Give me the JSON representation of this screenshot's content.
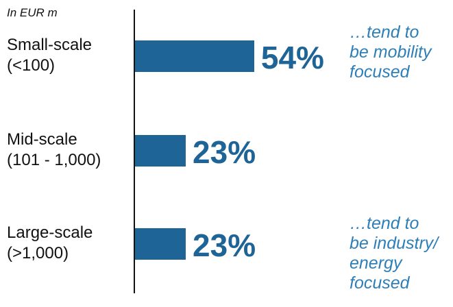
{
  "chart_data": {
    "type": "bar",
    "orientation": "horizontal",
    "unit_label": "In EUR m",
    "categories": [
      [
        "Small-scale",
        "(<100)"
      ],
      [
        "Mid-scale",
        "(101 - 1,000)"
      ],
      [
        "Large-scale",
        "(>1,000)"
      ]
    ],
    "values": [
      54,
      23,
      23
    ],
    "value_labels": [
      "54%",
      "23%",
      "23%"
    ],
    "xlim": [
      0,
      100
    ],
    "bar_color": "#1f6496",
    "annotations": [
      {
        "category_index": 0,
        "lines": [
          "…tend to",
          "be mobility",
          "focused"
        ]
      },
      {
        "category_index": 2,
        "lines": [
          "…tend to",
          "be industry/",
          "energy",
          "focused"
        ]
      }
    ],
    "annotation_color": "#2e7fb8",
    "grid": false,
    "legend": "none"
  }
}
